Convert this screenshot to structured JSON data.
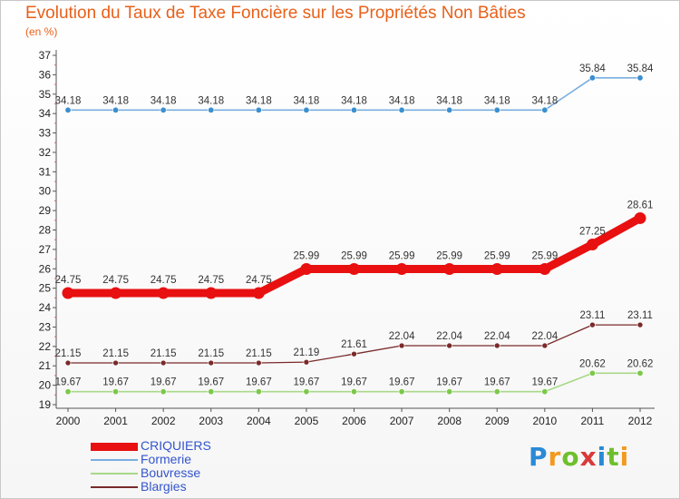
{
  "header": {
    "title": "Evolution du Taux de Taxe Foncière sur les Propriétés Non Bâties",
    "subtitle": "(en %)"
  },
  "logo": {
    "text": "Proxiti"
  },
  "chart_data": {
    "type": "line",
    "title": "Evolution du Taux de Taxe Foncière sur les Propriétés Non Bâties",
    "ylabel": "(en %)",
    "xlabel": "",
    "ylim": [
      19,
      37
    ],
    "yticks": [
      19,
      20,
      21,
      22,
      23,
      24,
      25,
      26,
      27,
      28,
      29,
      30,
      31,
      32,
      33,
      34,
      35,
      36,
      37
    ],
    "x": [
      "2000",
      "2001",
      "2002",
      "2003",
      "2004",
      "2005",
      "2006",
      "2007",
      "2008",
      "2009",
      "2010",
      "2011",
      "2012"
    ],
    "grid": false,
    "legend_position": "bottom-left",
    "series": [
      {
        "name": "Formerie",
        "color": "#7aaee0",
        "marker_color": "#3a8fd0",
        "values": [
          34.18,
          34.18,
          34.18,
          34.18,
          34.18,
          34.18,
          34.18,
          34.18,
          34.18,
          34.18,
          34.18,
          35.84,
          35.84
        ],
        "labels": [
          "34.18",
          "34.18",
          "34.18",
          "34.18",
          "34.18",
          "34.18",
          "34.18",
          "34.18",
          "34.18",
          "34.18",
          "34.18",
          "35.84",
          "35.84"
        ]
      },
      {
        "name": "CRIQUIERS",
        "color": "#e81010",
        "marker_color": "#e81010",
        "values": [
          24.75,
          24.75,
          24.75,
          24.75,
          24.75,
          25.99,
          25.99,
          25.99,
          25.99,
          25.99,
          25.99,
          27.25,
          28.61
        ],
        "labels": [
          "24.75",
          "24.75",
          "24.75",
          "24.75",
          "24.75",
          "25.99",
          "25.99",
          "25.99",
          "25.99",
          "25.99",
          "25.99",
          "27.25",
          "28.61"
        ]
      },
      {
        "name": "Blargies",
        "color": "#7a2a2a",
        "marker_color": "#7a2a2a",
        "values": [
          21.15,
          21.15,
          21.15,
          21.15,
          21.15,
          21.19,
          21.61,
          22.04,
          22.04,
          22.04,
          22.04,
          23.11,
          23.11
        ],
        "labels": [
          "21.15",
          "21.15",
          "21.15",
          "21.15",
          "21.15",
          "21.19",
          "21.61",
          "22.04",
          "22.04",
          "22.04",
          "22.04",
          "23.11",
          "23.11"
        ]
      },
      {
        "name": "Bouvresse",
        "color": "#a8d888",
        "marker_color": "#7cc84a",
        "values": [
          19.67,
          19.67,
          19.67,
          19.67,
          19.67,
          19.67,
          19.67,
          19.67,
          19.67,
          19.67,
          19.67,
          20.62,
          20.62
        ],
        "labels": [
          "19.67",
          "19.67",
          "19.67",
          "19.67",
          "19.67",
          "19.67",
          "19.67",
          "19.67",
          "19.67",
          "19.67",
          "19.67",
          "20.62",
          "20.62"
        ]
      }
    ],
    "legend_order": [
      "CRIQUIERS",
      "Formerie",
      "Bouvresse",
      "Blargies"
    ]
  }
}
